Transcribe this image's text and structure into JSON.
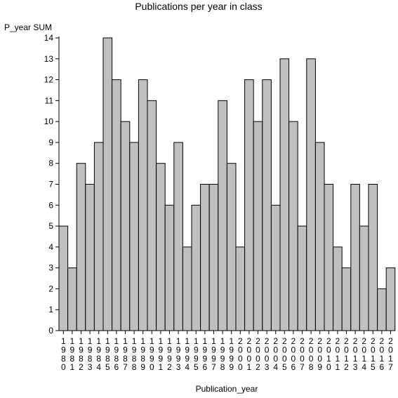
{
  "chart_data": {
    "type": "bar",
    "title": "Publications per year in class",
    "xlabel": "Publication_year",
    "ylabel": "P_year SUM",
    "ylim": [
      0,
      14
    ],
    "yticks": [
      0,
      1,
      2,
      3,
      4,
      5,
      6,
      7,
      8,
      9,
      10,
      11,
      12,
      13,
      14
    ],
    "categories": [
      "1980",
      "1981",
      "1982",
      "1983",
      "1984",
      "1985",
      "1986",
      "1987",
      "1988",
      "1989",
      "1990",
      "1991",
      "1992",
      "1993",
      "1994",
      "1995",
      "1996",
      "1997",
      "1998",
      "1999",
      "2000",
      "2001",
      "2002",
      "2003",
      "2004",
      "2005",
      "2006",
      "2007",
      "2008",
      "2009",
      "2010",
      "2011",
      "2012",
      "2013",
      "2014",
      "2015",
      "2016",
      "2017"
    ],
    "values": [
      5,
      3,
      8,
      7,
      9,
      14,
      12,
      10,
      9,
      12,
      11,
      8,
      6,
      9,
      4,
      6,
      7,
      7,
      11,
      8,
      4,
      12,
      10,
      12,
      6,
      13,
      10,
      5,
      13,
      9,
      7,
      4,
      3,
      7,
      5,
      7,
      2,
      3
    ],
    "grid": false,
    "bar_color": "#c0c0c0",
    "bar_edge_color": "#000000"
  }
}
